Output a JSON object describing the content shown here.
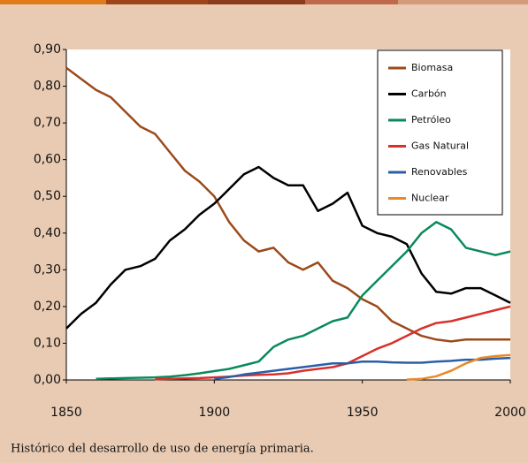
{
  "chart_data": {
    "type": "line",
    "x": [
      1850,
      1855,
      1860,
      1865,
      1870,
      1875,
      1880,
      1885,
      1890,
      1895,
      1900,
      1905,
      1910,
      1915,
      1920,
      1925,
      1930,
      1935,
      1940,
      1945,
      1950,
      1955,
      1960,
      1965,
      1970,
      1975,
      1980,
      1985,
      1990,
      1995,
      2000
    ],
    "series": [
      {
        "name": "Biomasa",
        "color": "#9c4a1a",
        "values": [
          0.85,
          0.82,
          0.79,
          0.77,
          0.73,
          0.69,
          0.67,
          0.62,
          0.57,
          0.54,
          0.5,
          0.43,
          0.38,
          0.35,
          0.36,
          0.32,
          0.3,
          0.32,
          0.27,
          0.25,
          0.22,
          0.2,
          0.16,
          0.14,
          0.12,
          0.11,
          0.105,
          0.11,
          0.11,
          0.11,
          0.11
        ]
      },
      {
        "name": "Carbón",
        "color": "#000000",
        "values": [
          0.14,
          0.18,
          0.21,
          0.26,
          0.3,
          0.31,
          0.33,
          0.38,
          0.41,
          0.45,
          0.48,
          0.52,
          0.56,
          0.58,
          0.55,
          0.53,
          0.53,
          0.46,
          0.48,
          0.51,
          0.42,
          0.4,
          0.39,
          0.37,
          0.29,
          0.24,
          0.235,
          0.25,
          0.25,
          0.23,
          0.21
        ]
      },
      {
        "name": "Petróleo",
        "color": "#0a8a5a",
        "values": [
          null,
          null,
          0.003,
          0.004,
          0.005,
          0.006,
          0.007,
          0.009,
          0.013,
          0.018,
          0.024,
          0.03,
          0.04,
          0.05,
          0.09,
          0.11,
          0.12,
          0.14,
          0.16,
          0.17,
          0.23,
          0.27,
          0.31,
          0.35,
          0.4,
          0.43,
          0.41,
          0.36,
          0.35,
          0.34,
          0.35
        ]
      },
      {
        "name": "Gas Natural",
        "color": "#d9302a",
        "values": [
          null,
          null,
          null,
          null,
          null,
          null,
          0.002,
          0.003,
          0.004,
          0.005,
          0.007,
          0.009,
          0.012,
          0.014,
          0.015,
          0.018,
          0.025,
          0.03,
          0.035,
          0.045,
          0.065,
          0.085,
          0.1,
          0.12,
          0.14,
          0.155,
          0.16,
          0.17,
          0.18,
          0.19,
          0.2
        ]
      },
      {
        "name": "Renovables",
        "color": "#2a5fa8",
        "values": [
          null,
          null,
          null,
          null,
          null,
          null,
          null,
          null,
          null,
          null,
          0.003,
          0.008,
          0.015,
          0.02,
          0.025,
          0.03,
          0.035,
          0.04,
          0.045,
          0.045,
          0.05,
          0.05,
          0.048,
          0.047,
          0.047,
          0.05,
          0.052,
          0.055,
          0.055,
          0.058,
          0.06
        ]
      },
      {
        "name": "Nuclear",
        "color": "#e8892a",
        "values": [
          null,
          null,
          null,
          null,
          null,
          null,
          null,
          null,
          null,
          null,
          null,
          null,
          null,
          null,
          null,
          null,
          null,
          null,
          null,
          null,
          null,
          null,
          null,
          0.001,
          0.003,
          0.01,
          0.025,
          0.045,
          0.06,
          0.065,
          0.068
        ]
      }
    ],
    "xlim": [
      1850,
      2000
    ],
    "xticks": [
      1850,
      1900,
      1950,
      2000
    ],
    "ylim": [
      0,
      0.9
    ],
    "yticks": [
      {
        "value": 0,
        "label": "0,00"
      },
      {
        "value": 0.1,
        "label": "0,10"
      },
      {
        "value": 0.2,
        "label": "0,20"
      },
      {
        "value": 0.3,
        "label": "0,30"
      },
      {
        "value": 0.4,
        "label": "0,40"
      },
      {
        "value": 0.5,
        "label": "0,50"
      },
      {
        "value": 0.6,
        "label": "0,60"
      },
      {
        "value": 0.7,
        "label": "0,70"
      },
      {
        "value": 0.8,
        "label": "0,80"
      },
      {
        "value": 0.9,
        "label": "0,90"
      }
    ],
    "grid": false,
    "legend": "upper right",
    "caption": "Histórico del desarrollo de uso de energía primaria."
  }
}
